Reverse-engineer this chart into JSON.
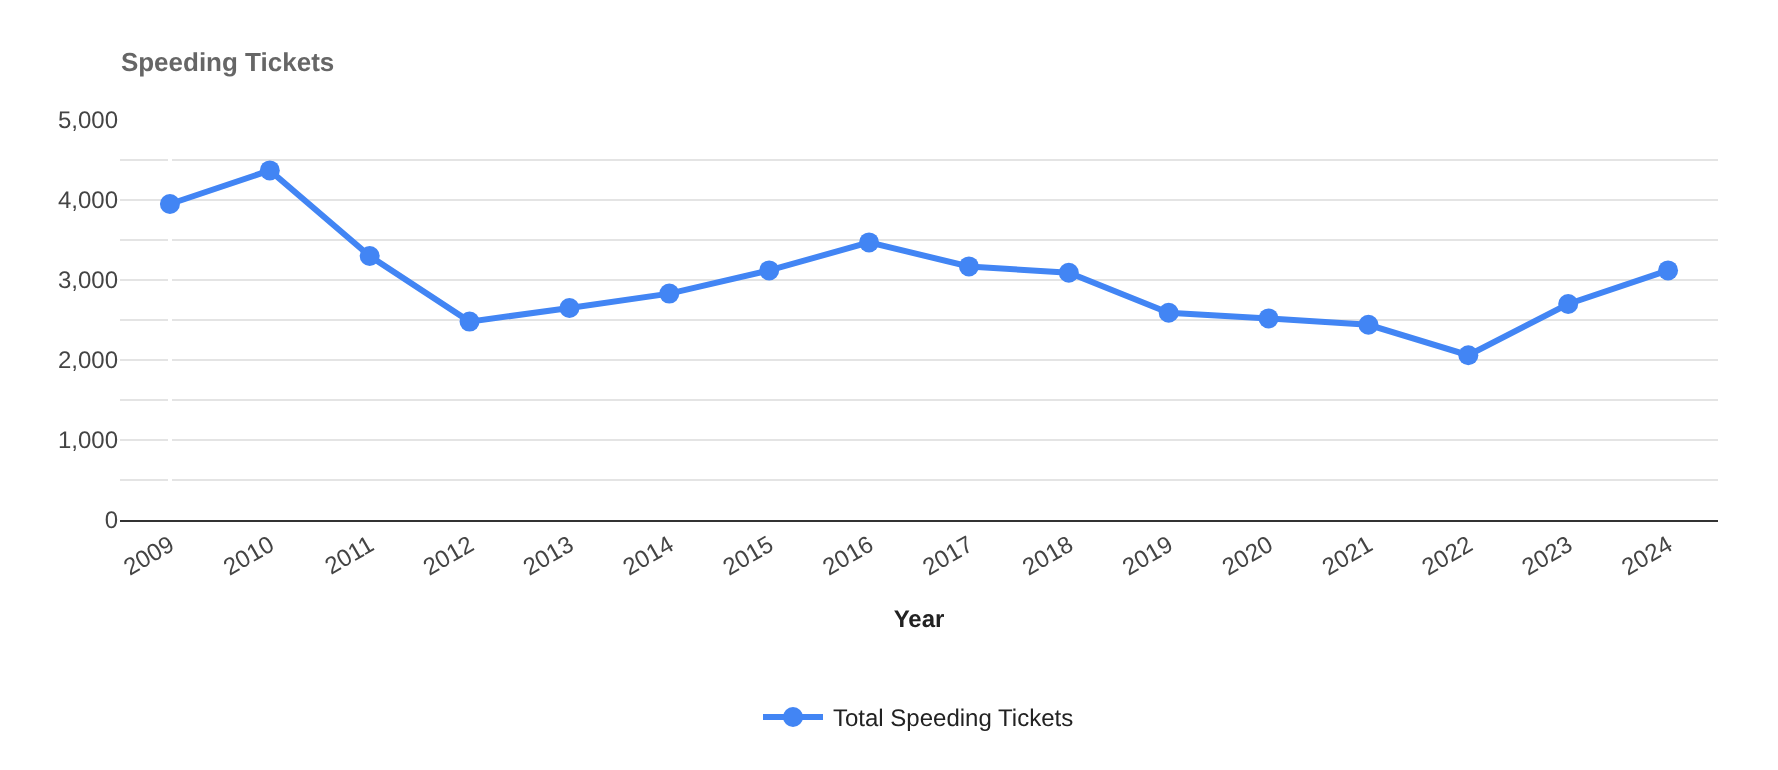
{
  "chart_data": {
    "type": "line",
    "title": "Speeding Tickets",
    "xlabel": "Year",
    "categories": [
      "2009",
      "2010",
      "2011",
      "2012",
      "2013",
      "2014",
      "2015",
      "2016",
      "2017",
      "2018",
      "2019",
      "2020",
      "2021",
      "2022",
      "2023",
      "2024"
    ],
    "series": [
      {
        "name": "Total Speeding Tickets",
        "color": "#4285f4",
        "values": [
          3950,
          4370,
          3300,
          2480,
          2650,
          2830,
          3120,
          3470,
          3170,
          3090,
          2590,
          2520,
          2440,
          2060,
          2700,
          3120
        ]
      }
    ],
    "ylim": [
      0,
      5000
    ],
    "yticks": [
      0,
      {
        "value": 500,
        "label": null
      },
      {
        "value": 1000,
        "label": "1,000"
      },
      {
        "value": 1500,
        "label": null
      },
      {
        "value": 2000,
        "label": "2,000"
      },
      {
        "value": 2500,
        "label": null
      },
      {
        "value": 3000,
        "label": "3,000"
      },
      {
        "value": 3500,
        "label": null
      },
      {
        "value": 4000,
        "label": "4,000"
      },
      {
        "value": 4500,
        "label": null
      },
      {
        "value": 5000,
        "label": "5,000"
      }
    ],
    "grid": "y",
    "legend": "bottom",
    "marker": "circle",
    "line_style": "solid"
  }
}
